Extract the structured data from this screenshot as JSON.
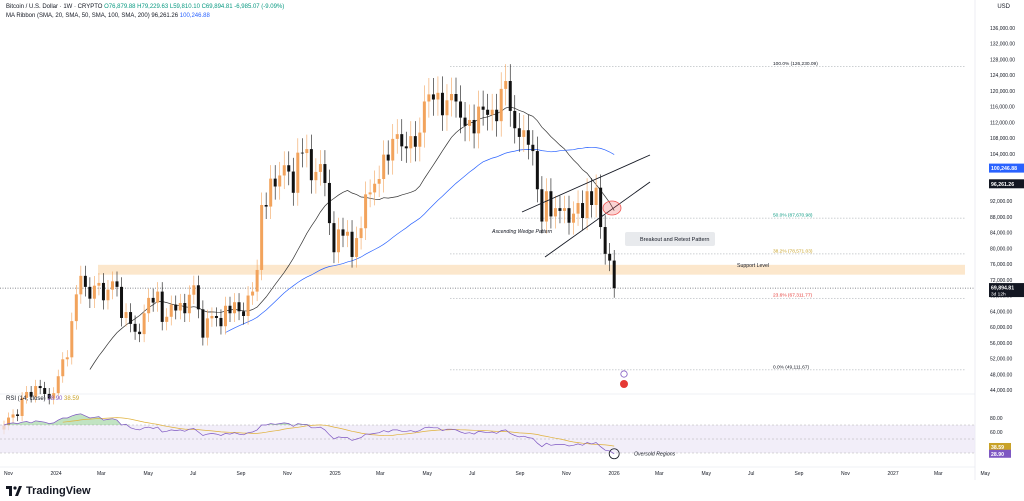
{
  "header": {
    "symbol_line": "Bitcoin / U.S. Dollar · 1W · CRYPTO",
    "open": "O76,879.88",
    "high": "H79,229.63",
    "low": "L59,810.10",
    "close": "C69,894.81",
    "change": "-6,985.07 (-9.09%)",
    "ma_ribbon_label": "MA Ribbon (SMA, 20, SMA, 50, SMA, 100, SMA, 200)",
    "ma_value_1": "96,261.26",
    "ma_value_2": "100,246.88",
    "currency": "USD"
  },
  "chart_data": {
    "type": "candlestick",
    "title": "Bitcoin / U.S. Dollar · 1W",
    "ylim": [
      44000,
      138000
    ],
    "y_ticks": [
      "136,000.00",
      "132,000.00",
      "128,000.00",
      "124,000.00",
      "120,000.00",
      "116,000.00",
      "112,000.00",
      "108,000.00",
      "104,000.00",
      "100,000.00",
      "96,000.00",
      "92,000.00",
      "88,000.00",
      "84,000.00",
      "80,000.00",
      "76,000.00",
      "72,000.00",
      "68,000.00",
      "64,000.00",
      "60,000.00",
      "56,000.00",
      "52,000.00",
      "48,000.00",
      "44,000.00"
    ],
    "x_ticks": [
      "Nov",
      "2024",
      "Mar",
      "May",
      "Jul",
      "Sep",
      "Nov",
      "2025",
      "Mar",
      "May",
      "Jul",
      "Sep",
      "Nov",
      "2026",
      "Mar",
      "May",
      "Jul",
      "Sep",
      "Nov",
      "2027",
      "Mar",
      "May"
    ],
    "closes": [
      35000,
      37000,
      37800,
      37400,
      42000,
      43500,
      42300,
      45000,
      44500,
      43000,
      41800,
      43200,
      47500,
      51800,
      52300,
      61500,
      68300,
      73000,
      70200,
      67200,
      70500,
      71200,
      66800,
      69500,
      71600,
      70200,
      62300,
      63800,
      60800,
      58800,
      58200,
      63500,
      67400,
      66200,
      69000,
      61300,
      62600,
      65700,
      64200,
      66100,
      63500,
      68200,
      70600,
      64500,
      57300,
      62200,
      62800,
      62300,
      60200,
      65400,
      63500,
      66300,
      64000,
      62800,
      68000,
      69000,
      74500,
      91000,
      90600,
      97700,
      95700,
      98500,
      101100,
      99500,
      94100,
      104300,
      104200,
      105200,
      97300,
      99400,
      101400,
      96600,
      86400,
      79000,
      84800,
      83200,
      84200,
      77800,
      82600,
      85100,
      93700,
      94200,
      96400,
      97600,
      103800,
      102300,
      107800,
      109000,
      105900,
      105400,
      108500,
      105800,
      109400,
      117300,
      119100,
      117800,
      119500,
      113800,
      117600,
      119200,
      117300,
      113200,
      111100,
      112600,
      109200,
      116000,
      115200,
      113900,
      115200,
      112300,
      120500,
      122500,
      114900,
      110500,
      108300,
      110000,
      106300,
      104700,
      95000,
      86800,
      94500,
      88100,
      90200,
      89500,
      90200,
      86500,
      88800,
      91500,
      87700,
      94500,
      91000,
      95400,
      85400,
      78600,
      76880,
      69890
    ],
    "rsi": [
      70,
      72,
      73,
      72,
      74,
      75,
      73,
      76,
      75,
      74,
      72,
      73,
      77,
      80,
      80,
      83,
      85,
      86,
      83,
      80,
      81,
      82,
      77,
      78,
      79,
      77,
      70,
      71,
      66,
      64,
      63,
      66,
      67,
      65,
      67,
      60,
      61,
      63,
      62,
      63,
      61,
      64,
      65,
      60,
      55,
      57,
      58,
      57,
      55,
      58,
      57,
      59,
      57,
      56,
      59,
      60,
      63,
      70,
      70,
      72,
      71,
      72,
      73,
      72,
      68,
      72,
      71,
      71,
      66,
      66,
      67,
      63,
      56,
      50,
      53,
      52,
      52,
      48,
      50,
      52,
      57,
      57,
      58,
      59,
      62,
      60,
      63,
      63,
      61,
      61,
      62,
      60,
      62,
      66,
      67,
      66,
      66,
      62,
      64,
      64,
      63,
      60,
      58,
      59,
      57,
      61,
      60,
      59,
      60,
      58,
      62,
      63,
      58,
      55,
      53,
      54,
      52,
      51,
      44,
      39,
      44,
      41,
      42,
      42,
      42,
      40,
      41,
      43,
      41,
      45,
      43,
      45,
      39,
      34,
      33,
      28.9
    ],
    "rsi_ylim": [
      0,
      100
    ],
    "rsi_ticks": [
      "80.00",
      "60.00"
    ],
    "rsi_label": "RSI (14, close)",
    "rsi_value": "28.90",
    "rsi_ma_value": "38.59",
    "fib_levels": [
      {
        "label": "100.0% (126,230.09)",
        "price": 126230
      },
      {
        "label": "50.0% (87,670.98)",
        "price": 87671
      },
      {
        "label": "38.2% (78,571.03)",
        "price": 78571
      },
      {
        "label": "23.6% (67,311.77)",
        "price": 67312
      },
      {
        "label": "0.0% (49,111.67)",
        "price": 49112
      }
    ],
    "support_zone": [
      73300,
      75800
    ],
    "annotations": {
      "wedge": "Ascending Wedge Pattern",
      "breakout": "Breakout and Retest Pattern",
      "support": "Support Level",
      "oversold": "Oversold Regions"
    },
    "price_tags": [
      {
        "label": "100,246.88",
        "price": 100246.88,
        "color": "#2962ff"
      },
      {
        "label": "96,261.26",
        "price": 96261.26,
        "color": "#131722"
      },
      {
        "label": "69,894.81",
        "price": 69894.81,
        "color": "#131722",
        "sub": "3d 12h"
      }
    ],
    "rsi_tags": [
      {
        "label": "38.59",
        "value": 38.59,
        "color": "#c9a227"
      },
      {
        "label": "28.90",
        "value": 28.9,
        "color": "#7e57c2"
      }
    ]
  },
  "footer": {
    "brand": "TradingView"
  },
  "colors": {
    "up": "#f2a35c",
    "down": "#111111",
    "sma20": "#333333",
    "sma50": "#2962ff",
    "rsi": "#7e57c2",
    "rsi_ma": "#e0b13a"
  }
}
